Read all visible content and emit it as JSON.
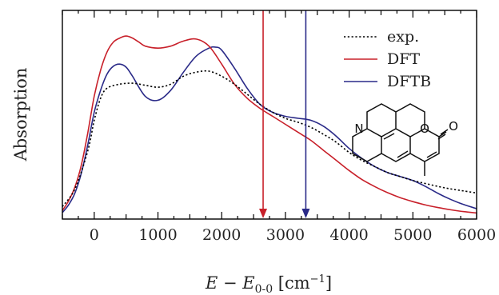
{
  "chart_data": {
    "type": "line",
    "xlabel": {
      "main": "E − E",
      "sub": "0-0",
      "unit_open": " [cm",
      "sup": "−1",
      "unit_close": "]"
    },
    "ylabel": "Absorption",
    "xlim": [
      -500,
      6000
    ],
    "ylim": [
      0,
      1
    ],
    "xticks": [
      0,
      1000,
      2000,
      3000,
      4000,
      5000,
      6000
    ],
    "xtick_labels": [
      "0",
      "1000",
      "2000",
      "3000",
      "4000",
      "5000",
      "6000"
    ],
    "yticks_shown": false,
    "grid": false,
    "legend": {
      "placement": "top-right"
    },
    "series": [
      {
        "name": "exp.",
        "color": "#000000",
        "dash": "dotted",
        "x": [
          -500,
          -300,
          -100,
          0,
          100,
          200,
          400,
          600,
          800,
          1000,
          1200,
          1400,
          1600,
          1800,
          2000,
          2200,
          2400,
          2600,
          2800,
          3000,
          3200,
          3400,
          3600,
          3800,
          4000,
          4200,
          4400,
          4600,
          4800,
          5000,
          5200,
          5400,
          5600,
          5800,
          6000
        ],
        "y": [
          0.05,
          0.14,
          0.33,
          0.48,
          0.59,
          0.64,
          0.66,
          0.665,
          0.655,
          0.645,
          0.66,
          0.7,
          0.72,
          0.725,
          0.7,
          0.66,
          0.61,
          0.56,
          0.52,
          0.49,
          0.47,
          0.445,
          0.41,
          0.37,
          0.32,
          0.28,
          0.25,
          0.22,
          0.2,
          0.18,
          0.165,
          0.15,
          0.138,
          0.128,
          0.118
        ]
      },
      {
        "name": "DFT",
        "color": "#c8202a",
        "dash": "solid",
        "x": [
          -500,
          -400,
          -300,
          -200,
          -100,
          0,
          100,
          200,
          300,
          400,
          500,
          600,
          700,
          800,
          1000,
          1200,
          1400,
          1600,
          1800,
          2000,
          2200,
          2400,
          2600,
          2800,
          3000,
          3200,
          3400,
          3600,
          3800,
          4000,
          4200,
          4400,
          4600,
          4800,
          5000,
          5200,
          5400,
          5600,
          5800,
          6000
        ],
        "y": [
          0.03,
          0.08,
          0.15,
          0.26,
          0.42,
          0.6,
          0.73,
          0.82,
          0.87,
          0.89,
          0.9,
          0.89,
          0.87,
          0.85,
          0.84,
          0.85,
          0.875,
          0.885,
          0.85,
          0.76,
          0.66,
          0.59,
          0.54,
          0.5,
          0.46,
          0.42,
          0.38,
          0.33,
          0.28,
          0.23,
          0.185,
          0.15,
          0.12,
          0.095,
          0.075,
          0.058,
          0.045,
          0.034,
          0.025,
          0.018
        ]
      },
      {
        "name": "DFTB",
        "color": "#2a2a88",
        "dash": "solid",
        "x": [
          -500,
          -400,
          -300,
          -200,
          -100,
          0,
          100,
          200,
          300,
          400,
          500,
          600,
          800,
          1000,
          1200,
          1400,
          1600,
          1800,
          1900,
          2000,
          2200,
          2400,
          2600,
          2800,
          3000,
          3200,
          3400,
          3600,
          3800,
          4000,
          4200,
          4400,
          4600,
          4800,
          5000,
          5200,
          5400,
          5600,
          5800,
          6000
        ],
        "y": [
          0.02,
          0.06,
          0.12,
          0.22,
          0.36,
          0.52,
          0.63,
          0.71,
          0.75,
          0.76,
          0.745,
          0.7,
          0.6,
          0.58,
          0.63,
          0.72,
          0.8,
          0.84,
          0.845,
          0.83,
          0.74,
          0.64,
          0.56,
          0.52,
          0.5,
          0.49,
          0.48,
          0.45,
          0.4,
          0.34,
          0.29,
          0.25,
          0.22,
          0.2,
          0.18,
          0.15,
          0.115,
          0.085,
          0.06,
          0.04
        ]
      }
    ],
    "arrows": [
      {
        "series": "DFT",
        "x": 2650,
        "color": "#c8202a"
      },
      {
        "series": "DFTB",
        "x": 3320,
        "color": "#2a2a88"
      }
    ],
    "inset": {
      "type": "molecule",
      "atom_labels": [
        "N",
        "O",
        "O"
      ]
    }
  }
}
